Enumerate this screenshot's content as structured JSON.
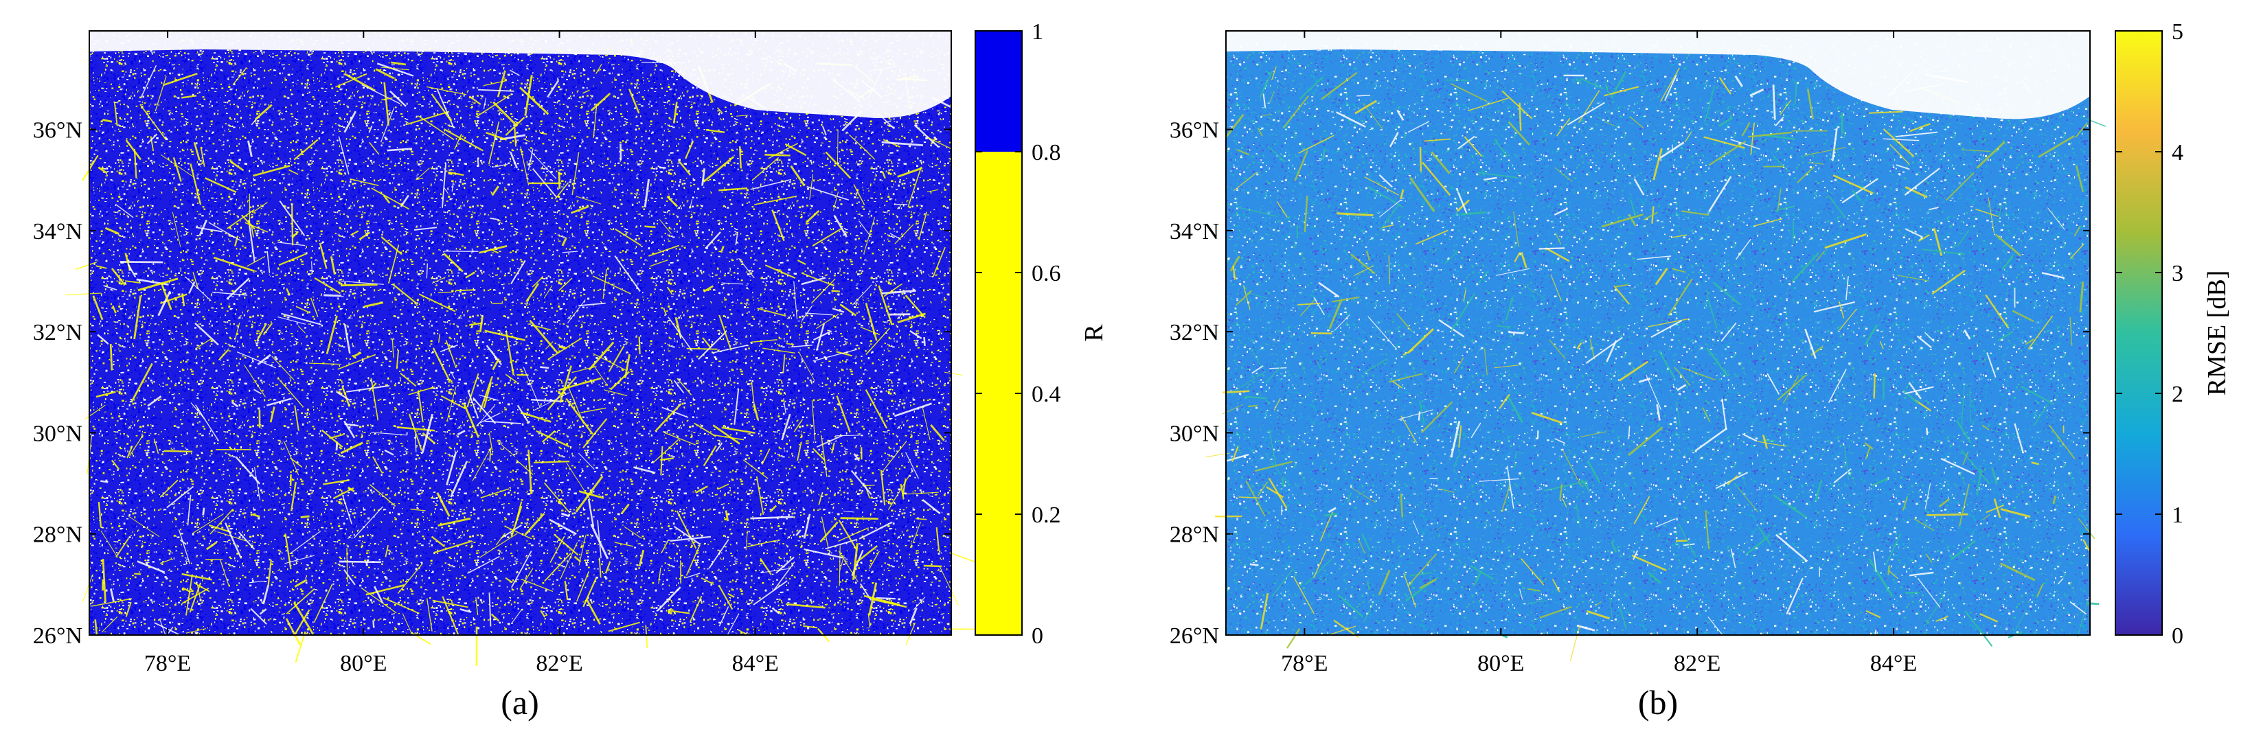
{
  "chart_data": [
    {
      "type": "heatmap",
      "caption": "(a)",
      "x_ticks": [
        "78°E",
        "80°E",
        "82°E",
        "84°E"
      ],
      "y_ticks": [
        "26°N",
        "28°N",
        "30°N",
        "32°N",
        "34°N",
        "36°N"
      ],
      "x_tick_values": [
        78,
        80,
        82,
        84
      ],
      "y_tick_values": [
        26,
        28,
        30,
        32,
        34,
        36
      ],
      "xlim": [
        77.2,
        86.0
      ],
      "ylim": [
        26.0,
        37.95
      ],
      "colorbar": {
        "label": "R",
        "range": [
          0,
          1
        ],
        "ticks": [
          "0",
          "0.2",
          "0.4",
          "0.6",
          "0.8",
          "1"
        ],
        "tick_values": [
          0,
          0.2,
          0.4,
          0.6,
          0.8,
          1
        ],
        "stops": [
          {
            "from": 0,
            "to": 0.8,
            "color": "#ffff00"
          },
          {
            "from": 0.8,
            "to": 1,
            "color": "#0000ee"
          }
        ]
      }
    },
    {
      "type": "heatmap",
      "caption": "(b)",
      "x_ticks": [
        "78°E",
        "80°E",
        "82°E",
        "84°E"
      ],
      "y_ticks": [
        "26°N",
        "28°N",
        "30°N",
        "32°N",
        "34°N",
        "36°N"
      ],
      "x_tick_values": [
        78,
        80,
        82,
        84
      ],
      "y_tick_values": [
        26,
        28,
        30,
        32,
        34,
        36
      ],
      "xlim": [
        77.2,
        86.0
      ],
      "ylim": [
        26.0,
        37.95
      ],
      "colorbar": {
        "label": "RMSE [dB]",
        "range": [
          0,
          5
        ],
        "ticks": [
          "0",
          "1",
          "2",
          "3",
          "4",
          "5"
        ],
        "tick_values": [
          0,
          1,
          2,
          3,
          4,
          5
        ],
        "colormap": "parula",
        "colormap_colors": [
          "#3e26a8",
          "#2d6ef7",
          "#14a9d9",
          "#30c0a0",
          "#a5be3a",
          "#f8ba3d",
          "#f9fb15"
        ]
      }
    }
  ]
}
